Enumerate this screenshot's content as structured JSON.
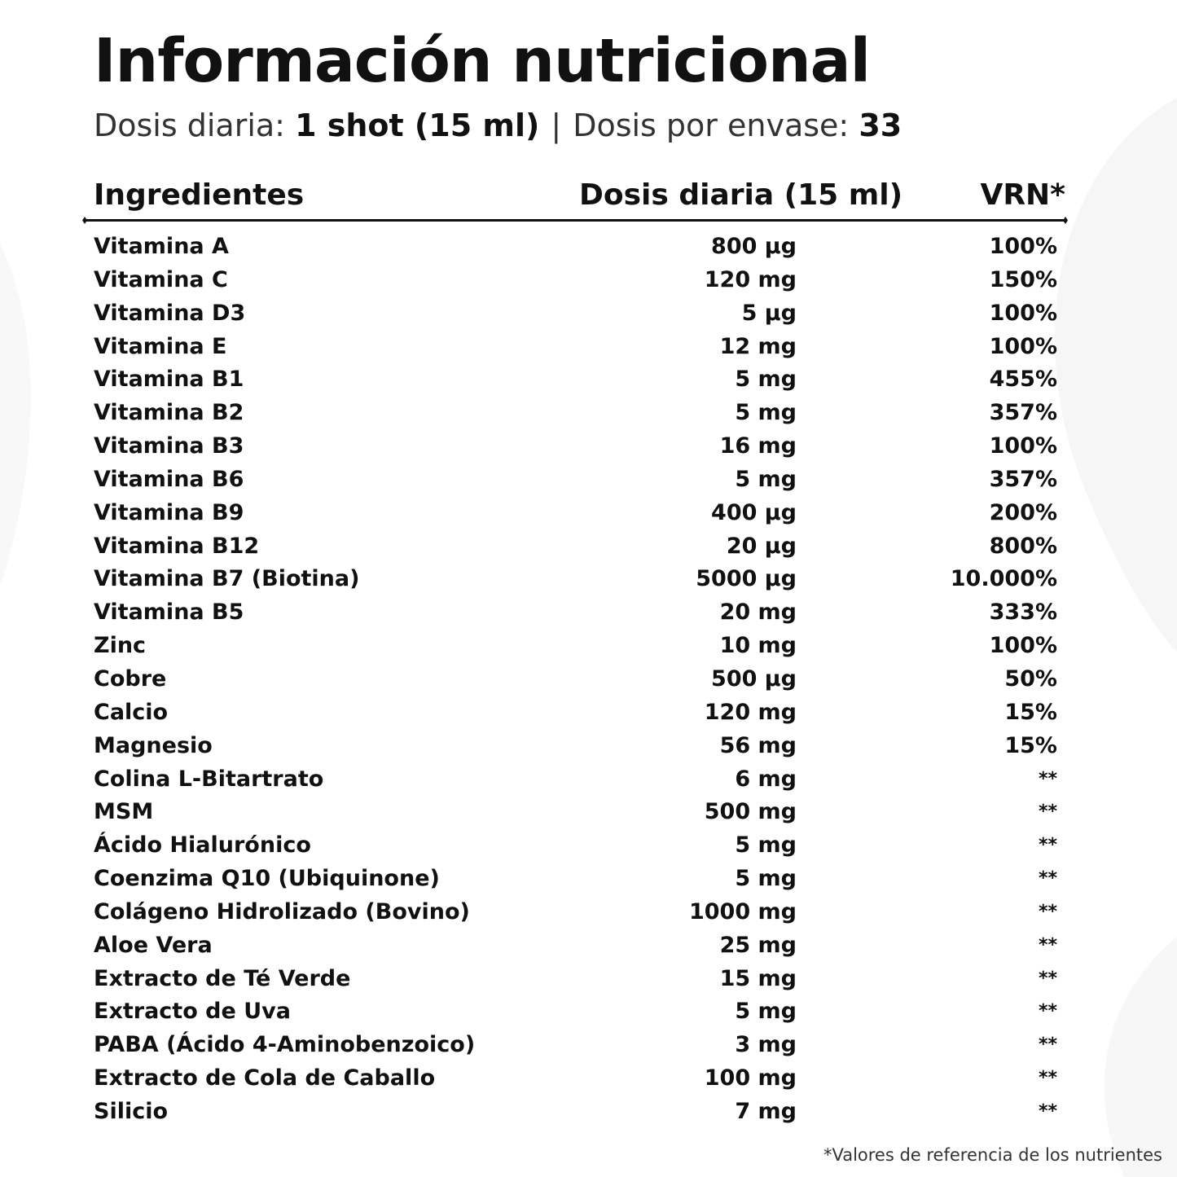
{
  "title": "Información nutricional",
  "subtitle": {
    "daily_label": "Dosis diaria: ",
    "daily_value": "1 shot (15 ml)",
    "separator": "|",
    "per_pack_label": "Dosis por envase: ",
    "per_pack_value": "33"
  },
  "table": {
    "headers": {
      "ingredients": "Ingredientes",
      "dose": "Dosis diaria (15 ml)",
      "vrn": "VRN*"
    },
    "rows": [
      {
        "name": "Vitamina A",
        "dose": "800 µg",
        "vrn": "100%"
      },
      {
        "name": "Vitamina C",
        "dose": "120 mg",
        "vrn": "150%"
      },
      {
        "name": "Vitamina D3",
        "dose": "5 µg",
        "vrn": "100%"
      },
      {
        "name": "Vitamina E",
        "dose": "12 mg",
        "vrn": "100%"
      },
      {
        "name": "Vitamina B1",
        "dose": "5 mg",
        "vrn": "455%"
      },
      {
        "name": "Vitamina B2",
        "dose": "5 mg",
        "vrn": "357%"
      },
      {
        "name": "Vitamina B3",
        "dose": "16 mg",
        "vrn": "100%"
      },
      {
        "name": "Vitamina B6",
        "dose": "5 mg",
        "vrn": "357%"
      },
      {
        "name": "Vitamina B9",
        "dose": "400 µg",
        "vrn": "200%"
      },
      {
        "name": "Vitamina B12",
        "dose": "20 µg",
        "vrn": "800%"
      },
      {
        "name": "Vitamina B7 (Biotina)",
        "dose": "5000 µg",
        "vrn": "10.000%"
      },
      {
        "name": "Vitamina B5",
        "dose": "20 mg",
        "vrn": "333%"
      },
      {
        "name": "Zinc",
        "dose": "10 mg",
        "vrn": "100%"
      },
      {
        "name": "Cobre",
        "dose": "500 µg",
        "vrn": "50%"
      },
      {
        "name": "Calcio",
        "dose": "120 mg",
        "vrn": "15%"
      },
      {
        "name": "Magnesio",
        "dose": "56 mg",
        "vrn": "15%"
      },
      {
        "name": "Colina L-Bitartrato",
        "dose": "6 mg",
        "vrn": "**"
      },
      {
        "name": "MSM",
        "dose": "500 mg",
        "vrn": "**"
      },
      {
        "name": "Ácido Hialurónico",
        "dose": "5 mg",
        "vrn": "**"
      },
      {
        "name": "Coenzima Q10 (Ubiquinone)",
        "dose": "5 mg",
        "vrn": "**"
      },
      {
        "name": "Colágeno Hidrolizado  (Bovino)",
        "dose": "1000 mg",
        "vrn": "**"
      },
      {
        "name": "Aloe Vera",
        "dose": "25 mg",
        "vrn": "**"
      },
      {
        "name": "Extracto de Té Verde",
        "dose": "15 mg",
        "vrn": "**"
      },
      {
        "name": "Extracto de Uva",
        "dose": "5 mg",
        "vrn": "**"
      },
      {
        "name": "PABA (Ácido 4-Aminobenzoico)",
        "dose": "3 mg",
        "vrn": "**"
      },
      {
        "name": "Extracto de Cola de Caballo",
        "dose": "100 mg",
        "vrn": "**"
      },
      {
        "name": "Silicio",
        "dose": "7 mg",
        "vrn": "**"
      }
    ]
  },
  "footnote": "*Valores de referencia de los nutrientes"
}
